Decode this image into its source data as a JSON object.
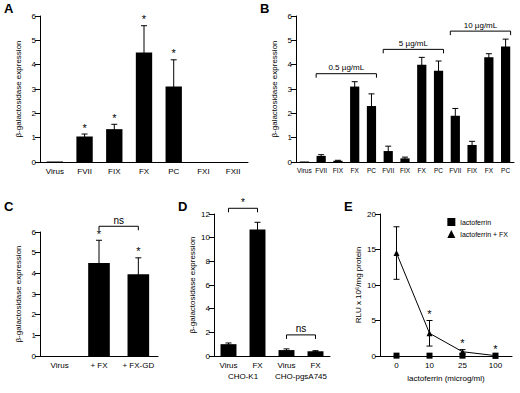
{
  "chart_data": [
    {
      "panel": "A",
      "type": "bar",
      "ylabel": "β-galactosidase expression",
      "categories": [
        "Virus",
        "FVII",
        "FIX",
        "FX",
        "PC",
        "FXI",
        "FXII"
      ],
      "values": [
        0.02,
        1.05,
        1.35,
        4.5,
        3.1,
        0,
        0
      ],
      "errors": [
        0,
        0.1,
        0.2,
        1.1,
        1.1,
        0,
        0
      ],
      "significance": [
        null,
        "*",
        "*",
        "*",
        "*",
        null,
        null
      ],
      "color": "#000000",
      "ylim": [
        0,
        6
      ],
      "yticks": [
        0,
        1,
        2,
        3,
        4,
        5,
        6
      ]
    },
    {
      "panel": "B",
      "type": "bar",
      "ylabel": "β-galactosidase expression",
      "categories": [
        "Virus",
        "FVII",
        "FIX",
        "FX",
        "PC",
        "FVII",
        "FIX",
        "FX",
        "PC",
        "FVII",
        "FIX",
        "FX",
        "PC"
      ],
      "values": [
        0.02,
        0.25,
        0.05,
        3.1,
        2.3,
        0.45,
        0.15,
        4.0,
        3.75,
        1.9,
        0.7,
        4.3,
        4.75
      ],
      "errors": [
        0,
        0.05,
        0.02,
        0.2,
        0.5,
        0.2,
        0.05,
        0.3,
        0.4,
        0.3,
        0.15,
        0.15,
        0.3
      ],
      "groups": [
        {
          "label": "0.5 µg/mL",
          "members": [
            1,
            2,
            3,
            4
          ]
        },
        {
          "label": "5 µg/mL",
          "members": [
            5,
            6,
            7,
            8
          ]
        },
        {
          "label": "10 µg/mL",
          "members": [
            9,
            10,
            11,
            12
          ]
        }
      ],
      "color": "#000000",
      "ylim": [
        0,
        6
      ],
      "yticks": [
        0,
        1,
        2,
        3,
        4,
        5,
        6
      ]
    },
    {
      "panel": "C",
      "type": "bar",
      "ylabel": "β-galactosidase expression",
      "categories": [
        "Virus",
        "+ FX",
        "+ FX-GD"
      ],
      "values": [
        0,
        4.5,
        3.95
      ],
      "errors": [
        0,
        1.1,
        0.8
      ],
      "significance": [
        null,
        "*",
        "*"
      ],
      "brackets": [
        {
          "label": "ns",
          "between": [
            1,
            2
          ]
        }
      ],
      "color": "#000000",
      "ylim": [
        0,
        6
      ],
      "yticks": [
        0,
        1,
        2,
        3,
        4,
        5,
        6
      ]
    },
    {
      "panel": "D",
      "type": "bar",
      "ylabel": "β-galactosidase expression",
      "categories": [
        "Virus",
        "FX",
        "Virus",
        "FX"
      ],
      "values": [
        1.0,
        10.7,
        0.5,
        0.4
      ],
      "errors": [
        0.1,
        0.6,
        0.1,
        0.05
      ],
      "groups": [
        {
          "label": "CHO-K1",
          "members": [
            0,
            1
          ]
        },
        {
          "label": "CHO-pgsA745",
          "members": [
            2,
            3
          ]
        }
      ],
      "brackets": [
        {
          "label": "*",
          "between": [
            0,
            1
          ]
        },
        {
          "label": "ns",
          "between": [
            2,
            3
          ]
        }
      ],
      "color": "#000000",
      "ylim": [
        0,
        12
      ],
      "yticks": [
        0,
        2,
        4,
        6,
        8,
        10,
        12
      ]
    },
    {
      "panel": "E",
      "type": "line",
      "ylabel": "RLU x 10⁶/mg protein",
      "xlabel": "lactoferrin (microg/ml)",
      "categories": [
        "0",
        "10",
        "25",
        "100"
      ],
      "series": [
        {
          "name": "lactoferrin",
          "color": "#000000",
          "marker": "square",
          "line_style": "none",
          "values": [
            0.05,
            0.05,
            0.05,
            0.05
          ],
          "errors": [
            0,
            0,
            0,
            0
          ]
        },
        {
          "name": "lactoferrin + FX",
          "color": "#000000",
          "marker": "triangle",
          "line_style": "solid",
          "values": [
            14.5,
            3.2,
            0.6,
            0.05
          ],
          "errors": [
            3.7,
            1.8,
            0.3,
            0
          ],
          "significance": [
            null,
            "*",
            "*",
            "*"
          ]
        }
      ],
      "legend": "upper right",
      "ylim": [
        0,
        20
      ],
      "yticks": [
        0,
        5,
        10,
        15,
        20
      ]
    }
  ]
}
